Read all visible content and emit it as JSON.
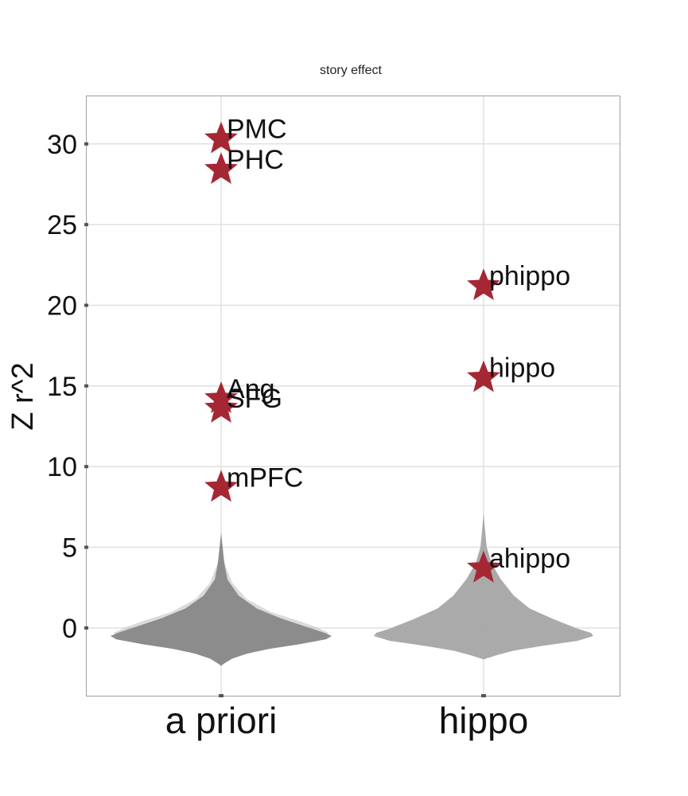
{
  "chart_data": {
    "type": "scatter",
    "title": "story effect",
    "xlabel": "",
    "ylabel": "Z r^2",
    "categories": [
      "a priori",
      "hippo"
    ],
    "ylim": [
      -4.2,
      33
    ],
    "yticks": [
      0,
      5,
      10,
      15,
      20,
      25,
      30
    ],
    "grid": true,
    "null_distribution": "violin",
    "points": [
      {
        "category": "a priori",
        "label": "PMC",
        "y": 30.3
      },
      {
        "category": "a priori",
        "label": "PHC",
        "y": 28.4
      },
      {
        "category": "a priori",
        "label": "Ang",
        "y": 14.2
      },
      {
        "category": "a priori",
        "label": "SFG",
        "y": 13.6
      },
      {
        "category": "a priori",
        "label": "mPFC",
        "y": 8.7
      },
      {
        "category": "hippo",
        "label": "phippo",
        "y": 21.2
      },
      {
        "category": "hippo",
        "label": "hippo",
        "y": 15.5
      },
      {
        "category": "hippo",
        "label": "ahippo",
        "y": 3.7
      }
    ],
    "colors": {
      "marker": "#a62734",
      "violin_a_priori": "#888888",
      "violin_hippo": "#a6a6a6",
      "grid": "#e0e0e0",
      "panel_border": "#a0a0a0"
    }
  }
}
